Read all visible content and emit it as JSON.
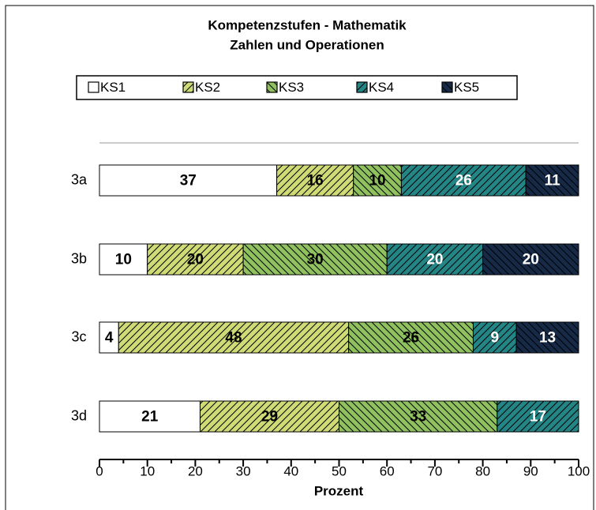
{
  "chart_data": {
    "type": "stacked_barh",
    "title": "Kompetenzstufen - Mathematik",
    "subtitle": "Zahlen und Operationen",
    "xlabel": "Prozent",
    "categories": [
      "3a",
      "3b",
      "3c",
      "3d"
    ],
    "series": [
      {
        "name": "KS1",
        "color": "#ffffff",
        "pattern": "none",
        "values": [
          37,
          10,
          4,
          21
        ]
      },
      {
        "name": "KS2",
        "color": "#cfdc76",
        "pattern": "/",
        "values": [
          16,
          20,
          48,
          29
        ]
      },
      {
        "name": "KS3",
        "color": "#8fc15e",
        "pattern": "\\",
        "values": [
          10,
          30,
          26,
          33
        ]
      },
      {
        "name": "KS4",
        "color": "#238585",
        "pattern": "/",
        "values": [
          26,
          20,
          9,
          17
        ]
      },
      {
        "name": "KS5",
        "color": "#162a48",
        "pattern": "\\",
        "values": [
          11,
          20,
          13,
          0
        ]
      }
    ],
    "xlim": [
      0,
      100
    ],
    "xticks": [
      0,
      10,
      20,
      30,
      40,
      50,
      60,
      70,
      80,
      90,
      100
    ],
    "grid": false
  }
}
